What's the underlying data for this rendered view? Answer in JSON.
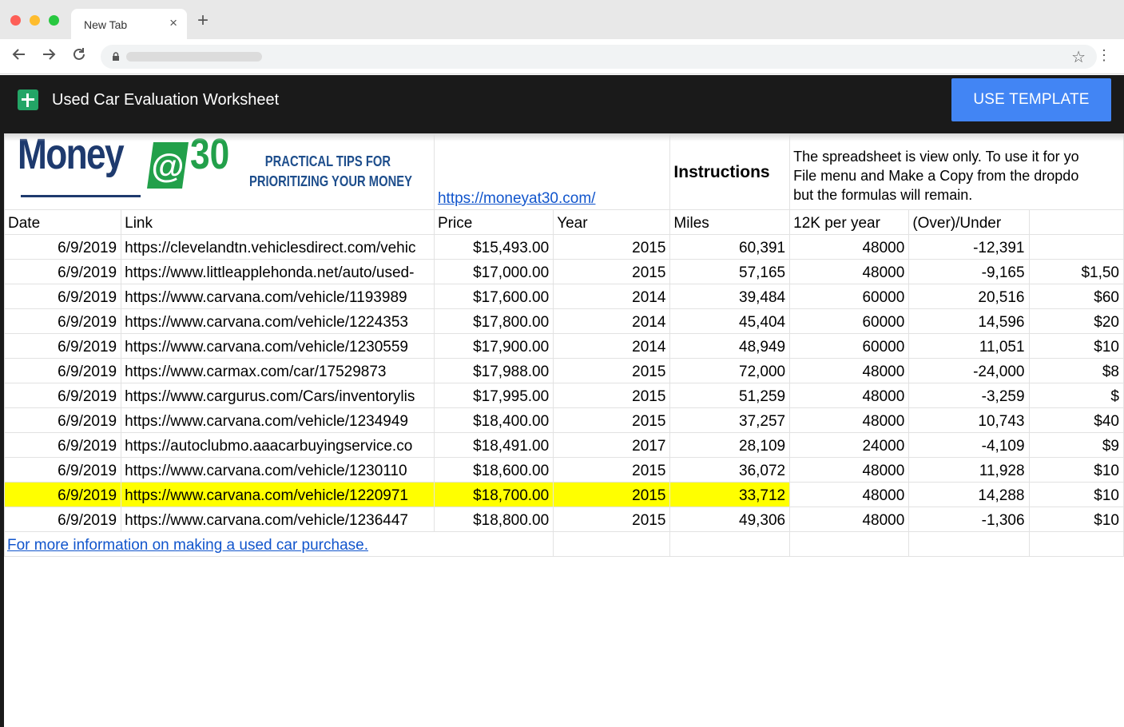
{
  "browser": {
    "tab_title": "New Tab",
    "tab_close": "×",
    "new_tab": "+"
  },
  "app": {
    "title": "Used Car Evaluation Worksheet",
    "use_template": "USE TEMPLATE"
  },
  "sheet": {
    "logo": {
      "money": "Money",
      "at": "@",
      "thirty": "30",
      "tagline_1": "PRACTICAL TIPS FOR",
      "tagline_2": "PRIORITIZING YOUR MONEY"
    },
    "site_link": "https://moneyat30.com/",
    "instructions_label": "Instructions",
    "instructions_lines": [
      "The spreadsheet is view only. To use it for yo",
      "File menu and Make a Copy from the dropdo",
      "but the formulas will remain."
    ],
    "headers": [
      "Date",
      "Link",
      "Price",
      "Year",
      "Miles",
      "12K per year",
      "(Over)/Under",
      ""
    ],
    "rows": [
      [
        "6/9/2019",
        "https://clevelandtn.vehiclesdirect.com/vehic",
        "$15,493.00",
        "2015",
        "60,391",
        "48000",
        "-12,391",
        ""
      ],
      [
        "6/9/2019",
        "https://www.littleapplehonda.net/auto/used-",
        "$17,000.00",
        "2015",
        "57,165",
        "48000",
        "-9,165",
        "$1,50"
      ],
      [
        "6/9/2019",
        "https://www.carvana.com/vehicle/1193989",
        "$17,600.00",
        "2014",
        "39,484",
        "60000",
        "20,516",
        "$60"
      ],
      [
        "6/9/2019",
        "https://www.carvana.com/vehicle/1224353",
        "$17,800.00",
        "2014",
        "45,404",
        "60000",
        "14,596",
        "$20"
      ],
      [
        "6/9/2019",
        "https://www.carvana.com/vehicle/1230559",
        "$17,900.00",
        "2014",
        "48,949",
        "60000",
        "11,051",
        "$10"
      ],
      [
        "6/9/2019",
        "https://www.carmax.com/car/17529873",
        "$17,988.00",
        "2015",
        "72,000",
        "48000",
        "-24,000",
        "$8"
      ],
      [
        "6/9/2019",
        "https://www.cargurus.com/Cars/inventorylis",
        "$17,995.00",
        "2015",
        "51,259",
        "48000",
        "-3,259",
        "$"
      ],
      [
        "6/9/2019",
        "https://www.carvana.com/vehicle/1234949",
        "$18,400.00",
        "2015",
        "37,257",
        "48000",
        "10,743",
        "$40"
      ],
      [
        "6/9/2019",
        "https://autoclubmo.aaacarbuyingservice.co",
        "$18,491.00",
        "2017",
        "28,109",
        "24000",
        "-4,109",
        "$9"
      ],
      [
        "6/9/2019",
        "https://www.carvana.com/vehicle/1230110",
        "$18,600.00",
        "2015",
        "36,072",
        "48000",
        "11,928",
        "$10"
      ],
      [
        "6/9/2019",
        "https://www.carvana.com/vehicle/1220971",
        "$18,700.00",
        "2015",
        "33,712",
        "48000",
        "14,288",
        "$10"
      ],
      [
        "6/9/2019",
        "https://www.carvana.com/vehicle/1236447",
        "$18,800.00",
        "2015",
        "49,306",
        "48000",
        "-1,306",
        "$10"
      ]
    ],
    "highlighted_row": 10,
    "highlight_color": "#ffff00",
    "footer_link": "For more information on making a used car purchase."
  },
  "colors": {
    "app_bar": "#1a1a1a",
    "template_button": "#4285f4",
    "link": "#1155cc",
    "sheets_green": "#23a566"
  }
}
